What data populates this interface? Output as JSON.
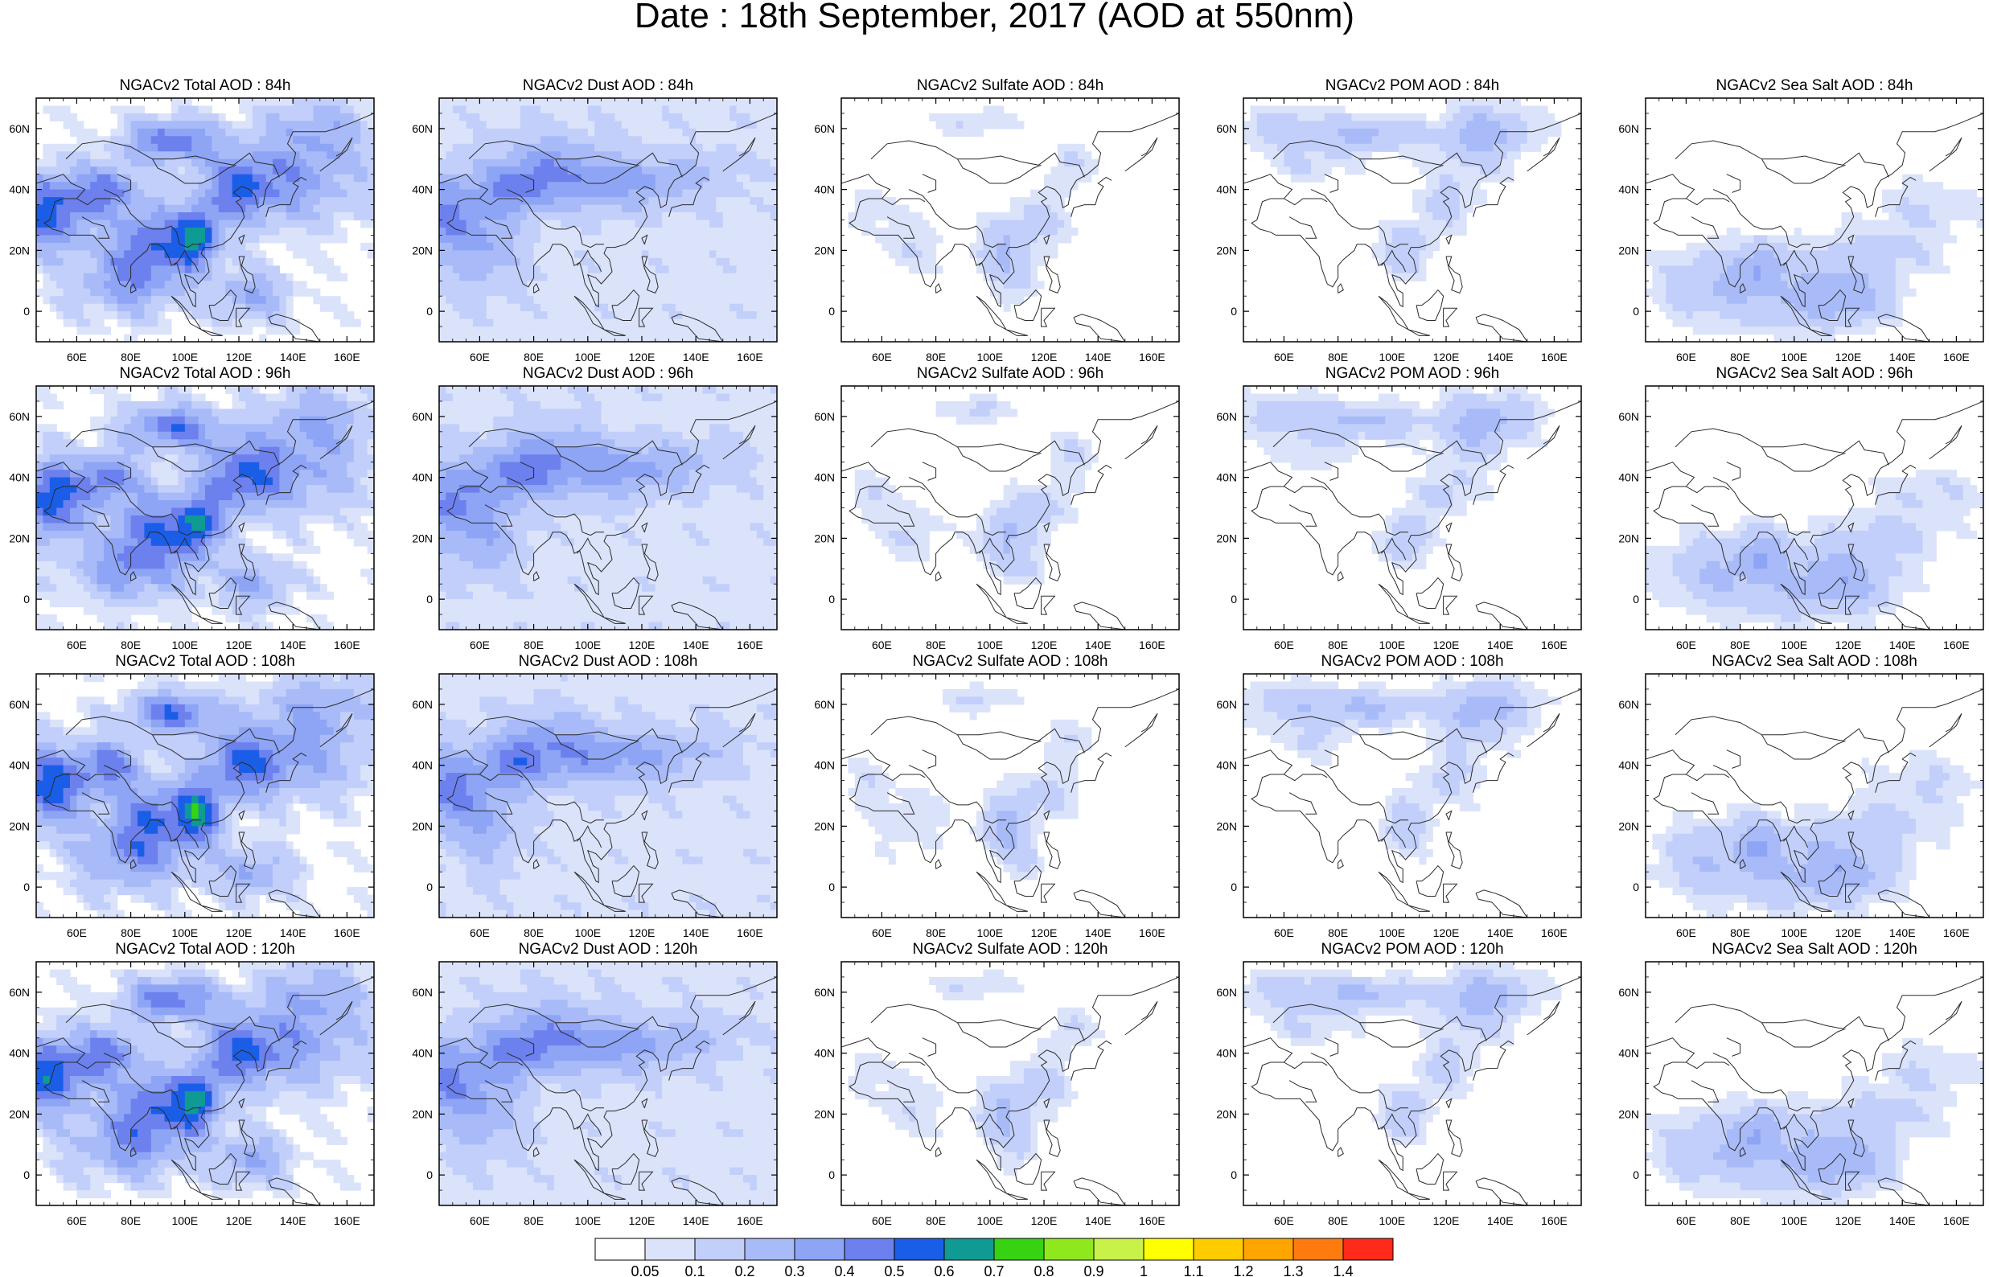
{
  "title": "Date : 18th September, 2017 (AOD at 550nm)",
  "panels": [
    [
      "NGACv2 Total AOD : 84h",
      "NGACv2 Dust AOD : 84h",
      "NGACv2 Sulfate AOD : 84h",
      "NGACv2 POM AOD : 84h",
      "NGACv2 Sea Salt AOD : 84h"
    ],
    [
      "NGACv2 Total AOD : 96h",
      "NGACv2 Dust AOD : 96h",
      "NGACv2 Sulfate AOD : 96h",
      "NGACv2 POM AOD : 96h",
      "NGACv2 Sea Salt AOD : 96h"
    ],
    [
      "NGACv2 Total AOD : 108h",
      "NGACv2 Dust AOD : 108h",
      "NGACv2 Sulfate AOD : 108h",
      "NGACv2 POM AOD : 108h",
      "NGACv2 Sea Salt AOD : 108h"
    ],
    [
      "NGACv2 Total AOD : 120h",
      "NGACv2 Dust AOD : 120h",
      "NGACv2 Sulfate AOD : 120h",
      "NGACv2 POM AOD : 120h",
      "NGACv2 Sea Salt  AOD : 120h"
    ]
  ],
  "lat_ticks": [
    "60N",
    "40N",
    "20N",
    "0"
  ],
  "lon_ticks": [
    "60E",
    "80E",
    "100E",
    "120E",
    "140E",
    "160E"
  ],
  "colorbar": {
    "labels": [
      "0.05",
      "0.1",
      "0.2",
      "0.3",
      "0.4",
      "0.5",
      "0.6",
      "0.7",
      "0.8",
      "0.9",
      "1",
      "1.1",
      "1.2",
      "1.3",
      "1.4"
    ],
    "colors": [
      "#ffffff",
      "#dbe3fb",
      "#c2cffa",
      "#a8bbf8",
      "#8ea4f5",
      "#6c80ee",
      "#1a5ee8",
      "#0f9a93",
      "#37d313",
      "#8fe81e",
      "#c8f24a",
      "#ffff00",
      "#ffcc00",
      "#ffa500",
      "#ff7b10",
      "#ff2a1a"
    ]
  }
}
